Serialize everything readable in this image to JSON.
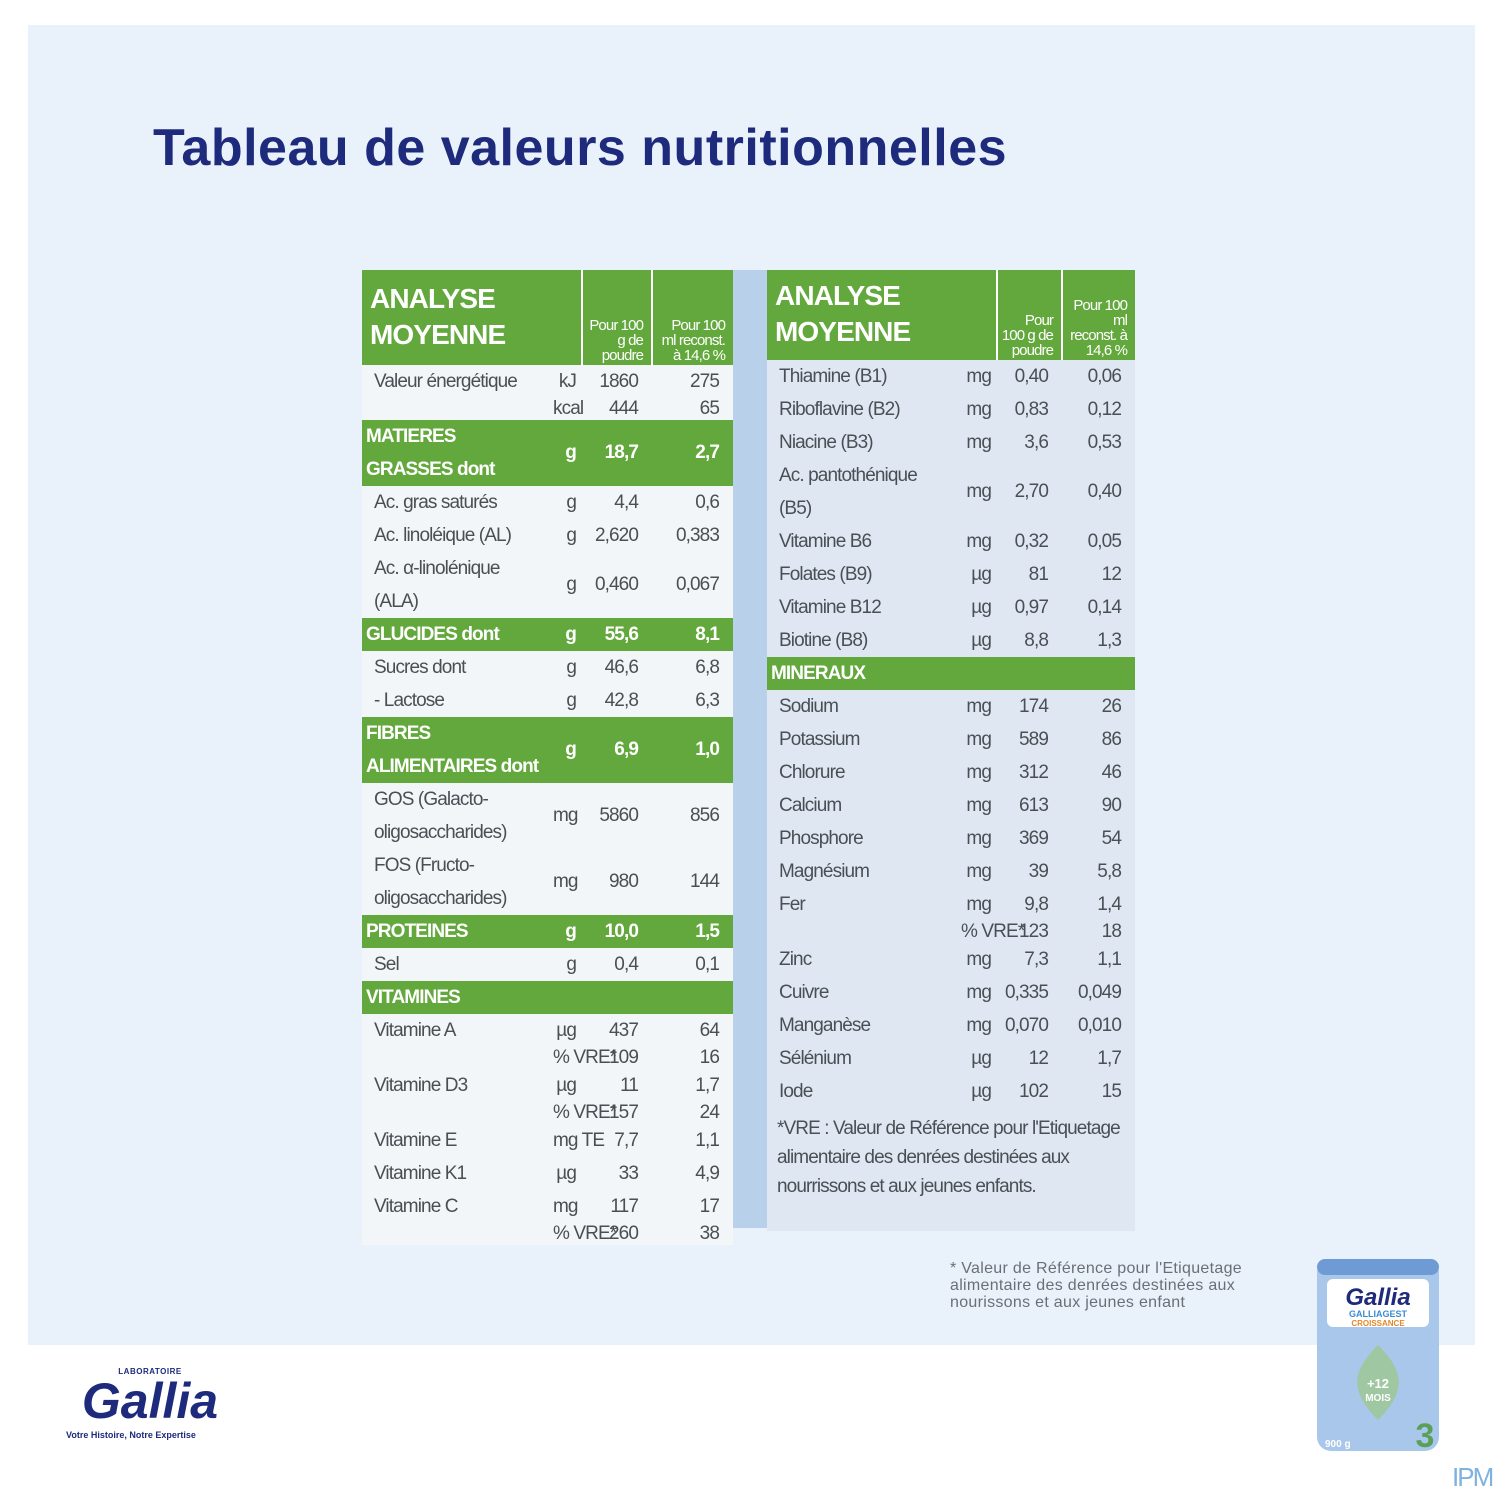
{
  "title": "Tableau de valeurs nutritionnelles",
  "left_table": {
    "header": {
      "title": "ANALYSE MOYENNE",
      "col1": "Pour 100 g de poudre",
      "col2": "Pour 100 ml reconst. à 14,6 %"
    },
    "rows": [
      {
        "label": "Valeur énergétique",
        "unit": "kJ",
        "per_100g": "1860",
        "per_100ml": "275"
      },
      {
        "unit": "kcal",
        "per_100g": "444",
        "per_100ml": "65"
      },
      {
        "label": "MATIERES GRASSES dont",
        "unit": "g",
        "per_100g": "18,7",
        "per_100ml": "2,7",
        "section": true
      },
      {
        "label": "Ac. gras saturés",
        "unit": "g",
        "per_100g": "4,4",
        "per_100ml": "0,6"
      },
      {
        "label": "Ac. linoléique (AL)",
        "unit": "g",
        "per_100g": "2,620",
        "per_100ml": "0,383"
      },
      {
        "label": "Ac. α-linolénique (ALA)",
        "unit": "g",
        "per_100g": "0,460",
        "per_100ml": "0,067"
      },
      {
        "label": "GLUCIDES dont",
        "unit": "g",
        "per_100g": "55,6",
        "per_100ml": "8,1",
        "section": true
      },
      {
        "label": "Sucres dont",
        "unit": "g",
        "per_100g": "46,6",
        "per_100ml": "6,8"
      },
      {
        "label": "- Lactose",
        "unit": "g",
        "per_100g": "42,8",
        "per_100ml": "6,3"
      },
      {
        "label": "FIBRES ALIMENTAIRES dont",
        "unit": "g",
        "per_100g": "6,9",
        "per_100ml": "1,0",
        "section": true
      },
      {
        "label": "GOS (Galacto-oligosaccharides)",
        "unit": "mg",
        "per_100g": "5860",
        "per_100ml": "856"
      },
      {
        "label": "FOS (Fructo-oligosaccharides)",
        "unit": "mg",
        "per_100g": "980",
        "per_100ml": "144"
      },
      {
        "label": "PROTEINES",
        "unit": "g",
        "per_100g": "10,0",
        "per_100ml": "1,5",
        "section": true
      },
      {
        "label": "Sel",
        "unit": "g",
        "per_100g": "0,4",
        "per_100ml": "0,1"
      },
      {
        "label": "VITAMINES",
        "section": true
      },
      {
        "label": "Vitamine A",
        "unit": "µg",
        "per_100g": "437",
        "per_100ml": "64"
      },
      {
        "unit": "% VRE*",
        "per_100g": "109",
        "per_100ml": "16"
      },
      {
        "label": "Vitamine D3",
        "unit": "µg",
        "per_100g": "11",
        "per_100ml": "1,7"
      },
      {
        "unit": "% VRE*",
        "per_100g": "157",
        "per_100ml": "24"
      },
      {
        "label": "Vitamine E",
        "unit": "mg TE",
        "per_100g": "7,7",
        "per_100ml": "1,1"
      },
      {
        "label": "Vitamine K1",
        "unit": "µg",
        "per_100g": "33",
        "per_100ml": "4,9"
      },
      {
        "label": "Vitamine C",
        "unit": "mg",
        "per_100g": "117",
        "per_100ml": "17"
      },
      {
        "unit": "% VRE*",
        "per_100g": "260",
        "per_100ml": "38"
      }
    ]
  },
  "right_table": {
    "header": {
      "title": "ANALYSE MOYENNE",
      "col1": "Pour 100 g de poudre",
      "col2": "Pour 100 ml reconst. à 14,6 %"
    },
    "rows": [
      {
        "label": "Thiamine (B1)",
        "unit": "mg",
        "per_100g": "0,40",
        "per_100ml": "0,06"
      },
      {
        "label": "Riboflavine (B2)",
        "unit": "mg",
        "per_100g": "0,83",
        "per_100ml": "0,12"
      },
      {
        "label": "Niacine (B3)",
        "unit": "mg",
        "per_100g": "3,6",
        "per_100ml": "0,53"
      },
      {
        "label": "Ac. pantothénique (B5)",
        "unit": "mg",
        "per_100g": "2,70",
        "per_100ml": "0,40"
      },
      {
        "label": "Vitamine B6",
        "unit": "mg",
        "per_100g": "0,32",
        "per_100ml": "0,05"
      },
      {
        "label": "Folates (B9)",
        "unit": "µg",
        "per_100g": "81",
        "per_100ml": "12"
      },
      {
        "label": "Vitamine B12",
        "unit": "µg",
        "per_100g": "0,97",
        "per_100ml": "0,14"
      },
      {
        "label": "Biotine (B8)",
        "unit": "µg",
        "per_100g": "8,8",
        "per_100ml": "1,3"
      },
      {
        "label": "MINERAUX",
        "section": true
      },
      {
        "label": "Sodium",
        "unit": "mg",
        "per_100g": "174",
        "per_100ml": "26"
      },
      {
        "label": "Potassium",
        "unit": "mg",
        "per_100g": "589",
        "per_100ml": "86"
      },
      {
        "label": "Chlorure",
        "unit": "mg",
        "per_100g": "312",
        "per_100ml": "46"
      },
      {
        "label": "Calcium",
        "unit": "mg",
        "per_100g": "613",
        "per_100ml": "90"
      },
      {
        "label": "Phosphore",
        "unit": "mg",
        "per_100g": "369",
        "per_100ml": "54"
      },
      {
        "label": "Magnésium",
        "unit": "mg",
        "per_100g": "39",
        "per_100ml": "5,8"
      },
      {
        "label": "Fer",
        "unit": "mg",
        "per_100g": "9,8",
        "per_100ml": "1,4"
      },
      {
        "unit": "% VRE*",
        "per_100g": "123",
        "per_100ml": "18"
      },
      {
        "label": "Zinc",
        "unit": "mg",
        "per_100g": "7,3",
        "per_100ml": "1,1"
      },
      {
        "label": "Cuivre",
        "unit": "mg",
        "per_100g": "0,335",
        "per_100ml": "0,049"
      },
      {
        "label": "Manganèse",
        "unit": "mg",
        "per_100g": "0,070",
        "per_100ml": "0,010"
      },
      {
        "label": "Sélénium",
        "unit": "µg",
        "per_100g": "12",
        "per_100ml": "1,7"
      },
      {
        "label": "Iode",
        "unit": "µg",
        "per_100g": "102",
        "per_100ml": "15"
      }
    ],
    "footnote": "*VRE : Valeur de Référence pour l'Etiquetage alimentaire des denrées destinées aux nourrissons et aux jeunes enfants."
  },
  "note": "* Valeur de Référence pour l'Etiquetage alimentaire des denrées destinées aux nourissons et aux jeunes enfant",
  "logo": {
    "label": "LABORATOIRE",
    "brand": "Gallia",
    "tagline": "Votre Histoire, Notre Expertise"
  },
  "product": {
    "brand": "Gallia",
    "name": "GALLIAGEST",
    "line": "CROISSANCE",
    "age": "+12",
    "age_unit": "MOIS",
    "weight": "900 g",
    "stage": "3"
  },
  "watermark": "IPM"
}
